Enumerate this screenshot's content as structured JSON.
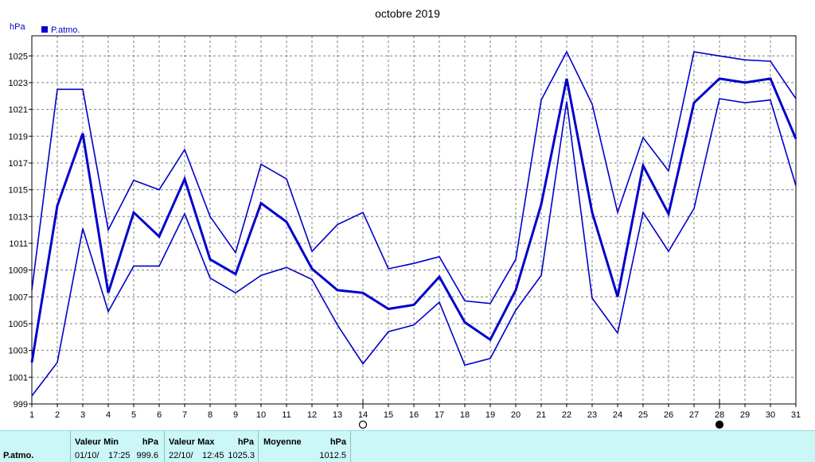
{
  "chart_data": {
    "type": "line",
    "title": "octobre 2019",
    "ylabel": "hPa",
    "legend": [
      {
        "name": "P.atmo.",
        "color": "#0000cc"
      }
    ],
    "legend_placement": "top-left",
    "x": [
      1,
      2,
      3,
      4,
      5,
      6,
      7,
      8,
      9,
      10,
      11,
      12,
      13,
      14,
      15,
      16,
      17,
      18,
      19,
      20,
      21,
      22,
      23,
      24,
      25,
      26,
      27,
      28,
      29,
      30,
      31
    ],
    "x_ticks": [
      "1",
      "2",
      "3",
      "4",
      "5",
      "6",
      "7",
      "8",
      "9",
      "10",
      "11",
      "12",
      "13",
      "14",
      "15",
      "16",
      "17",
      "18",
      "19",
      "20",
      "21",
      "22",
      "23",
      "24",
      "25",
      "26",
      "27",
      "28",
      "29",
      "30",
      "31"
    ],
    "y_ticks": [
      "999",
      "1001",
      "1003",
      "1005",
      "1007",
      "1009",
      "1011",
      "1013",
      "1015",
      "1017",
      "1019",
      "1021",
      "1023",
      "1025"
    ],
    "ylim": [
      999,
      1026.5
    ],
    "xlim": [
      1,
      31
    ],
    "grid": true,
    "series": [
      {
        "role": "max",
        "values": [
          1007.5,
          1022.5,
          1022.5,
          1012.0,
          1015.7,
          1015.0,
          1018.0,
          1013.0,
          1010.3,
          1016.9,
          1015.8,
          1010.4,
          1012.4,
          1013.3,
          1009.1,
          1009.5,
          1010.0,
          1006.7,
          1006.5,
          1009.8,
          1021.7,
          1025.3,
          1021.4,
          1013.3,
          1018.9,
          1016.4,
          1025.3,
          1025.0,
          1024.7,
          1024.6,
          1021.8
        ]
      },
      {
        "role": "mean",
        "values": [
          1002.1,
          1013.8,
          1019.2,
          1007.3,
          1013.3,
          1011.5,
          1015.8,
          1009.8,
          1008.7,
          1014.0,
          1012.6,
          1009.1,
          1007.5,
          1007.3,
          1006.1,
          1006.4,
          1008.5,
          1005.1,
          1003.8,
          1007.5,
          1013.9,
          1023.3,
          1013.3,
          1007.0,
          1016.8,
          1013.2,
          1021.5,
          1023.3,
          1023.0,
          1023.3,
          1018.8
        ]
      },
      {
        "role": "min",
        "values": [
          999.6,
          1002.1,
          1012.1,
          1005.9,
          1009.3,
          1009.3,
          1013.2,
          1008.4,
          1007.3,
          1008.6,
          1009.2,
          1008.3,
          1004.9,
          1002.0,
          1004.4,
          1004.9,
          1006.6,
          1001.9,
          1002.4,
          1006.0,
          1008.6,
          1021.6,
          1006.9,
          1004.3,
          1013.3,
          1010.4,
          1013.6,
          1021.8,
          1021.5,
          1021.7,
          1015.3
        ]
      }
    ],
    "moon_markers": [
      {
        "day": 14,
        "type": "full-moon"
      },
      {
        "day": 28,
        "type": "new-moon"
      }
    ]
  },
  "footer": {
    "series_label": "P.atmo.",
    "min": {
      "header": "Valeur Min",
      "unit": "hPa",
      "date": "01/10/",
      "time": "17:25",
      "value": "999.6"
    },
    "max": {
      "header": "Valeur Max",
      "unit": "hPa",
      "date": "22/10/",
      "time": "12:45",
      "value": "1025.3"
    },
    "mean": {
      "header": "Moyenne",
      "unit": "hPa",
      "value": "1012.5"
    }
  },
  "colors": {
    "line": "#0000cc",
    "grid": "#808080",
    "footer_bg": "#ccf7f7"
  }
}
